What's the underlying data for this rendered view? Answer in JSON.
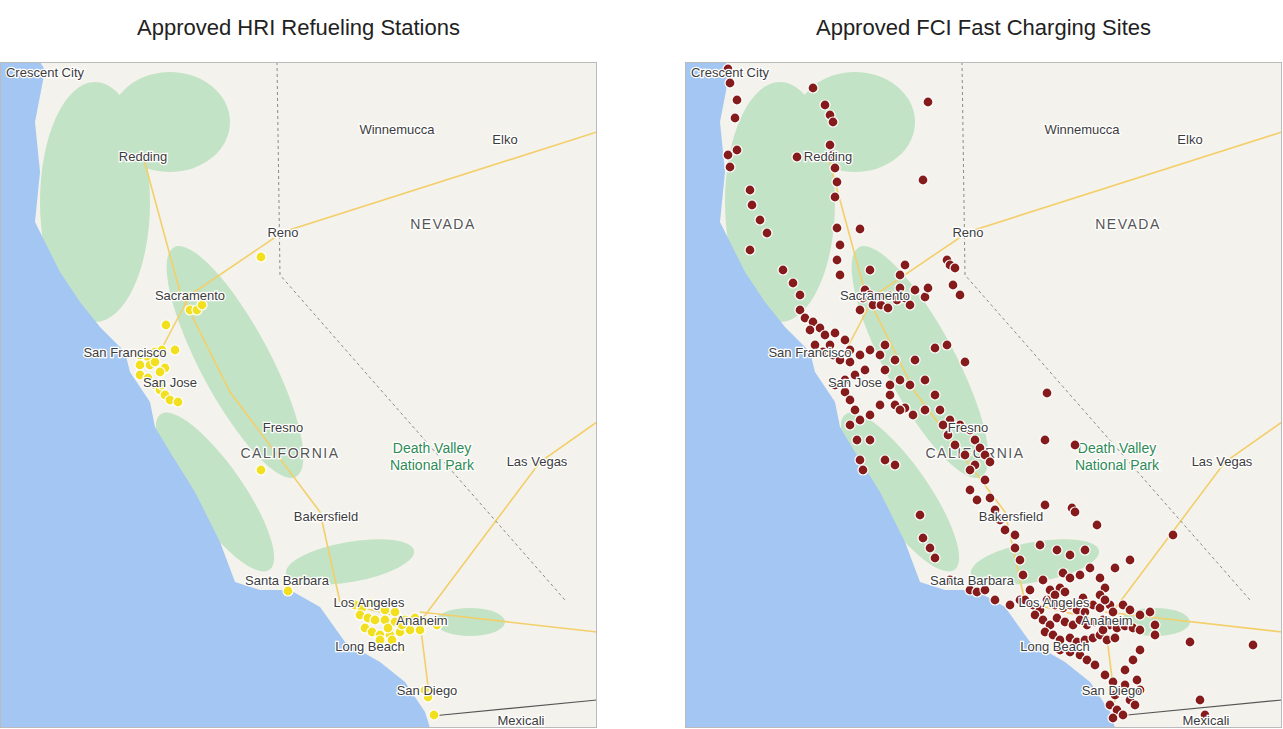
{
  "chart_data": [
    {
      "type": "scatter",
      "title": "Approved HRI Refueling Stations",
      "color": "#f2df1d",
      "marker": "circle",
      "tick_labels": false,
      "xlim": [
        0,
        597
      ],
      "ylim": [
        0,
        666
      ],
      "x": [
        261,
        190,
        197,
        202,
        166,
        140,
        148,
        155,
        162,
        175,
        140,
        150,
        155,
        165,
        140,
        148,
        160,
        155,
        160,
        165,
        170,
        178,
        162,
        261,
        288,
        355,
        362,
        370,
        378,
        385,
        395,
        360,
        368,
        375,
        385,
        395,
        405,
        415,
        425,
        437,
        365,
        372,
        380,
        390,
        400,
        410,
        420,
        380,
        392,
        400,
        402,
        388,
        425,
        428,
        434
      ],
      "values": [
        471,
        418,
        418,
        423,
        403,
        373,
        371,
        376,
        378,
        378,
        363,
        363,
        366,
        360,
        353,
        350,
        356,
        343,
        338,
        333,
        328,
        326,
        343,
        258,
        137,
        123,
        120,
        125,
        122,
        118,
        116,
        113,
        110,
        108,
        108,
        106,
        108,
        110,
        106,
        103,
        100,
        96,
        93,
        93,
        96,
        98,
        98,
        88,
        88,
        80,
        103,
        100,
        38,
        31,
        13
      ],
      "labels": [
        {
          "text": "Crescent City",
          "x": 45,
          "y": 656
        },
        {
          "text": "Redding",
          "x": 143,
          "y": 572
        },
        {
          "text": "Winnemucca",
          "x": 397,
          "y": 599
        },
        {
          "text": "Elko",
          "x": 505,
          "y": 589
        },
        {
          "text": "Reno",
          "x": 283,
          "y": 496
        },
        {
          "text": "Sacramento",
          "x": 190,
          "y": 433
        },
        {
          "text": "San Francisco",
          "x": 125,
          "y": 376
        },
        {
          "text": "San Jose",
          "x": 170,
          "y": 346
        },
        {
          "text": "Fresno",
          "x": 283,
          "y": 301
        },
        {
          "text": "Las Vegas",
          "x": 537,
          "y": 267
        },
        {
          "text": "Bakersfield",
          "x": 326,
          "y": 212
        },
        {
          "text": "Santa Barbara",
          "x": 287,
          "y": 148
        },
        {
          "text": "Los Angeles",
          "x": 369,
          "y": 126
        },
        {
          "text": "Anaheim",
          "x": 422,
          "y": 108
        },
        {
          "text": "Long Beach",
          "x": 370,
          "y": 82
        },
        {
          "text": "San Diego",
          "x": 427,
          "y": 38
        },
        {
          "text": "Mexicali",
          "x": 521,
          "y": 8
        }
      ],
      "region_labels": [
        {
          "text": "NEVADA",
          "x": 443,
          "y": 504
        },
        {
          "text": "CALIFORNIA",
          "x": 290,
          "y": 275
        }
      ],
      "park_labels": [
        {
          "text": "Death Valley National Park",
          "x": 432,
          "y": 273
        }
      ]
    },
    {
      "type": "scatter",
      "title": "Approved FCI Fast Charging Sites",
      "color": "#861b1b",
      "marker": "circle",
      "tick_labels": false,
      "xlim": [
        0,
        597
      ],
      "ylim": [
        0,
        666
      ],
      "x": [
        43,
        45,
        52,
        50,
        52,
        43,
        45,
        65,
        67,
        75,
        82,
        65,
        98,
        108,
        115,
        112,
        128,
        140,
        145,
        148,
        145,
        148,
        150,
        152,
        150,
        152,
        155,
        152,
        155,
        243,
        238,
        175,
        185,
        180,
        178,
        185,
        192,
        198,
        205,
        212,
        220,
        188,
        196,
        203,
        175,
        225,
        240,
        230,
        215,
        220,
        262,
        265,
        270,
        268,
        275,
        243,
        215,
        115,
        120,
        128,
        135,
        125,
        140,
        150,
        160,
        165,
        145,
        130,
        138,
        148,
        155,
        165,
        175,
        185,
        195,
        200,
        180,
        170,
        160,
        150,
        160,
        165,
        170,
        175,
        185,
        195,
        205,
        215,
        225,
        200,
        210,
        205,
        165,
        172,
        175,
        178,
        185,
        250,
        262,
        280,
        230,
        240,
        250,
        255,
        265,
        275,
        285,
        290,
        295,
        300,
        305,
        290,
        270,
        280,
        285,
        300,
        305,
        310,
        292,
        285,
        258,
        240,
        228,
        220,
        210,
        200,
        210,
        215,
        263,
        362,
        390,
        360,
        387,
        390,
        235,
        238,
        245,
        250,
        265,
        285,
        292,
        300,
        310,
        325,
        335,
        315,
        320,
        330,
        330,
        335,
        338,
        345,
        355,
        372,
        385,
        400,
        358,
        365,
        375,
        378,
        385,
        395,
        405,
        415,
        430,
        445,
        488,
        420,
        360,
        412,
        340,
        348,
        355,
        362,
        370,
        378,
        385,
        392,
        400,
        408,
        415,
        425,
        350,
        358,
        365,
        372,
        380,
        388,
        395,
        402,
        410,
        418,
        425,
        432,
        440,
        448,
        455,
        360,
        368,
        375,
        385,
        392,
        400,
        408,
        415,
        422,
        430,
        375,
        385,
        395,
        402,
        410,
        418,
        428,
        438,
        445,
        455,
        465,
        470,
        470,
        505,
        415,
        420,
        398,
        370,
        380,
        448,
        455,
        568,
        420,
        428,
        435,
        440,
        430,
        425,
        432,
        438,
        428,
        445,
        452,
        455,
        450,
        440,
        515,
        520
      ],
      "values": [
        659,
        645,
        628,
        610,
        578,
        573,
        561,
        538,
        523,
        508,
        495,
        478,
        458,
        445,
        433,
        571,
        640,
        623,
        613,
        606,
        583,
        573,
        560,
        546,
        531,
        500,
        483,
        468,
        453,
        626,
        548,
        499,
        458,
        438,
        430,
        433,
        428,
        431,
        432,
        428,
        430,
        423,
        423,
        420,
        418,
        423,
        431,
        438,
        453,
        463,
        468,
        463,
        460,
        443,
        433,
        440,
        440,
        418,
        410,
        406,
        400,
        398,
        393,
        395,
        388,
        378,
        383,
        383,
        376,
        373,
        368,
        366,
        373,
        378,
        373,
        383,
        358,
        353,
        348,
        343,
        336,
        328,
        318,
        308,
        313,
        323,
        333,
        348,
        343,
        358,
        368,
        343,
        303,
        288,
        268,
        258,
        288,
        380,
        383,
        366,
        368,
        348,
        333,
        318,
        308,
        303,
        298,
        288,
        280,
        273,
        266,
        263,
        283,
        273,
        258,
        248,
        230,
        218,
        228,
        238,
        303,
        318,
        313,
        320,
        323,
        268,
        263,
        318,
        293,
        335,
        283,
        288,
        220,
        216,
        213,
        190,
        180,
        170,
        148,
        138,
        136,
        138,
        128,
        123,
        128,
        208,
        198,
        193,
        180,
        168,
        153,
        138,
        183,
        178,
        173,
        178,
        148,
        138,
        140,
        155,
        150,
        153,
        160,
        150,
        160,
        168,
        193,
        140,
        223,
        203,
        128,
        123,
        118,
        128,
        123,
        120,
        123,
        118,
        116,
        123,
        120,
        123,
        113,
        108,
        103,
        110,
        106,
        103,
        108,
        103,
        106,
        108,
        103,
        100,
        102,
        100,
        98,
        96,
        93,
        88,
        90,
        86,
        88,
        90,
        93,
        88,
        90,
        78,
        76,
        73,
        68,
        63,
        98,
        116,
        123,
        118,
        113,
        116,
        103,
        93,
        86,
        133,
        128,
        130,
        133,
        136,
        68,
        78,
        83,
        53,
        46,
        38,
        43,
        33,
        23,
        18,
        13,
        10,
        28,
        48,
        38,
        23,
        58,
        28,
        13
      ],
      "labels": [
        {
          "text": "Crescent City",
          "x": 45,
          "y": 656
        },
        {
          "text": "Redding",
          "x": 143,
          "y": 572
        },
        {
          "text": "Winnemucca",
          "x": 397,
          "y": 599
        },
        {
          "text": "Elko",
          "x": 505,
          "y": 589
        },
        {
          "text": "Reno",
          "x": 283,
          "y": 496
        },
        {
          "text": "Sacramento",
          "x": 190,
          "y": 433
        },
        {
          "text": "San Francisco",
          "x": 125,
          "y": 376
        },
        {
          "text": "San Jose",
          "x": 170,
          "y": 346
        },
        {
          "text": "Fresno",
          "x": 283,
          "y": 301
        },
        {
          "text": "Las Vegas",
          "x": 537,
          "y": 267
        },
        {
          "text": "Bakersfield",
          "x": 326,
          "y": 212
        },
        {
          "text": "Santa Barbara",
          "x": 287,
          "y": 148
        },
        {
          "text": "Los Angeles",
          "x": 369,
          "y": 126
        },
        {
          "text": "Anaheim",
          "x": 422,
          "y": 108
        },
        {
          "text": "Long Beach",
          "x": 370,
          "y": 82
        },
        {
          "text": "San Diego",
          "x": 427,
          "y": 38
        },
        {
          "text": "Mexicali",
          "x": 521,
          "y": 8
        }
      ],
      "region_labels": [
        {
          "text": "NEVADA",
          "x": 443,
          "y": 504
        },
        {
          "text": "CALIFORNIA",
          "x": 290,
          "y": 275
        }
      ],
      "park_labels": [
        {
          "text": "Death Valley National Park",
          "x": 432,
          "y": 273
        }
      ]
    }
  ]
}
